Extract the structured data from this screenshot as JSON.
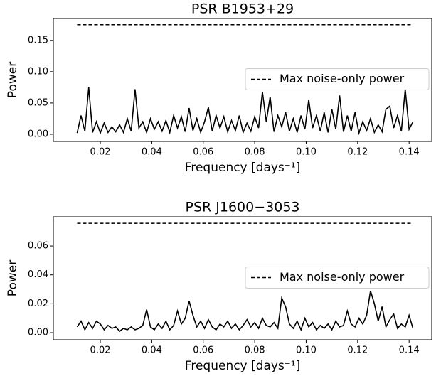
{
  "chart_data": [
    {
      "type": "line",
      "title": "PSR B1953+29",
      "x_label": "Frequency [days⁻¹]",
      "y_label": "Power",
      "x": [
        0.011,
        0.0125,
        0.014,
        0.0155,
        0.017,
        0.0185,
        0.02,
        0.0215,
        0.023,
        0.0245,
        0.026,
        0.0275,
        0.029,
        0.0305,
        0.032,
        0.0335,
        0.035,
        0.0365,
        0.038,
        0.0395,
        0.041,
        0.0425,
        0.044,
        0.0455,
        0.047,
        0.0485,
        0.05,
        0.0515,
        0.053,
        0.0545,
        0.056,
        0.0575,
        0.059,
        0.0605,
        0.062,
        0.0635,
        0.065,
        0.0665,
        0.068,
        0.0695,
        0.071,
        0.0725,
        0.074,
        0.0755,
        0.077,
        0.0785,
        0.08,
        0.0815,
        0.083,
        0.0845,
        0.086,
        0.0875,
        0.089,
        0.0905,
        0.092,
        0.0935,
        0.095,
        0.0965,
        0.098,
        0.0995,
        0.101,
        0.1025,
        0.104,
        0.1055,
        0.107,
        0.1085,
        0.11,
        0.1115,
        0.113,
        0.1145,
        0.116,
        0.1175,
        0.119,
        0.1205,
        0.122,
        0.1235,
        0.125,
        0.1265,
        0.128,
        0.1295,
        0.131,
        0.1325,
        0.134,
        0.1355,
        0.137,
        0.1385,
        0.14,
        0.1415
      ],
      "series": [
        {
          "color": "#000000",
          "values": [
            0.002,
            0.03,
            0.005,
            0.075,
            0.003,
            0.02,
            0.002,
            0.018,
            0.003,
            0.012,
            0.004,
            0.015,
            0.003,
            0.025,
            0.005,
            0.072,
            0.01,
            0.02,
            0.003,
            0.025,
            0.008,
            0.02,
            0.005,
            0.022,
            0.003,
            0.03,
            0.01,
            0.028,
            0.004,
            0.042,
            0.006,
            0.025,
            0.003,
            0.02,
            0.043,
            0.005,
            0.03,
            0.01,
            0.028,
            0.004,
            0.022,
            0.006,
            0.03,
            0.003,
            0.018,
            0.005,
            0.028,
            0.01,
            0.068,
            0.02,
            0.06,
            0.004,
            0.03,
            0.012,
            0.035,
            0.005,
            0.025,
            0.003,
            0.03,
            0.008,
            0.055,
            0.01,
            0.03,
            0.005,
            0.035,
            0.003,
            0.04,
            0.008,
            0.062,
            0.004,
            0.03,
            0.005,
            0.035,
            0.002,
            0.02,
            0.006,
            0.025,
            0.003,
            0.015,
            0.004,
            0.04,
            0.045,
            0.01,
            0.03,
            0.005,
            0.072,
            0.008,
            0.02
          ]
        }
      ],
      "reference_line": {
        "name": "Max noise-only power",
        "value": 0.175,
        "color": "#000000",
        "style": "dashed"
      },
      "legend": "center right",
      "xlim": [
        0.00175,
        0.1488
      ],
      "xticks": [
        0.02,
        0.04,
        0.06,
        0.08,
        {
          "value": 0.1,
          "label": "0.10"
        },
        0.12,
        0.14
      ],
      "ylim": [
        -0.0114,
        0.185
      ],
      "yticks": [
        {
          "value": 0,
          "label": "0.00"
        },
        {
          "value": 0.05,
          "label": "0.05"
        },
        {
          "value": 0.1,
          "label": "0.10"
        },
        {
          "value": 0.15,
          "label": "0.15"
        }
      ]
    },
    {
      "type": "line",
      "title": "PSR J1600−3053",
      "x_label": "Frequency [days⁻¹]",
      "y_label": "Power",
      "x": [
        0.011,
        0.0125,
        0.014,
        0.0155,
        0.017,
        0.0185,
        0.02,
        0.0215,
        0.023,
        0.0245,
        0.026,
        0.0275,
        0.029,
        0.0305,
        0.032,
        0.0335,
        0.035,
        0.0365,
        0.038,
        0.0395,
        0.041,
        0.0425,
        0.044,
        0.0455,
        0.047,
        0.0485,
        0.05,
        0.0515,
        0.053,
        0.0545,
        0.056,
        0.0575,
        0.059,
        0.0605,
        0.062,
        0.0635,
        0.065,
        0.0665,
        0.068,
        0.0695,
        0.071,
        0.0725,
        0.074,
        0.0755,
        0.077,
        0.0785,
        0.08,
        0.0815,
        0.083,
        0.0845,
        0.086,
        0.0875,
        0.089,
        0.0905,
        0.092,
        0.0935,
        0.095,
        0.0965,
        0.098,
        0.0995,
        0.101,
        0.1025,
        0.104,
        0.1055,
        0.107,
        0.1085,
        0.11,
        0.1115,
        0.113,
        0.1145,
        0.116,
        0.1175,
        0.119,
        0.1205,
        0.122,
        0.1235,
        0.125,
        0.1265,
        0.128,
        0.1295,
        0.131,
        0.1325,
        0.134,
        0.1355,
        0.137,
        0.1385,
        0.14,
        0.1415
      ],
      "series": [
        {
          "color": "#000000",
          "values": [
            0.004,
            0.008,
            0.002,
            0.007,
            0.003,
            0.008,
            0.006,
            0.002,
            0.005,
            0.003,
            0.004,
            0.001,
            0.003,
            0.002,
            0.004,
            0.002,
            0.003,
            0.005,
            0.016,
            0.004,
            0.002,
            0.006,
            0.003,
            0.008,
            0.002,
            0.005,
            0.015,
            0.006,
            0.01,
            0.022,
            0.012,
            0.004,
            0.008,
            0.003,
            0.009,
            0.004,
            0.002,
            0.006,
            0.004,
            0.008,
            0.003,
            0.006,
            0.002,
            0.005,
            0.009,
            0.004,
            0.007,
            0.003,
            0.01,
            0.005,
            0.004,
            0.007,
            0.003,
            0.024,
            0.018,
            0.006,
            0.003,
            0.008,
            0.002,
            0.01,
            0.004,
            0.007,
            0.002,
            0.005,
            0.003,
            0.006,
            0.002,
            0.008,
            0.004,
            0.005,
            0.015,
            0.006,
            0.004,
            0.01,
            0.006,
            0.012,
            0.029,
            0.02,
            0.008,
            0.018,
            0.004,
            0.009,
            0.013,
            0.003,
            0.006,
            0.004,
            0.012,
            0.003
          ]
        }
      ],
      "reference_line": {
        "name": "Max noise-only power",
        "value": 0.0757,
        "color": "#000000",
        "style": "dashed"
      },
      "legend": "center right",
      "xlim": [
        0.00175,
        0.1488
      ],
      "xticks": [
        0.02,
        0.04,
        0.06,
        0.08,
        {
          "value": 0.1,
          "label": "0.10"
        },
        0.12,
        0.14
      ],
      "ylim": [
        -0.0049,
        0.0802
      ],
      "yticks": [
        {
          "value": 0,
          "label": "0.00"
        },
        {
          "value": 0.02,
          "label": "0.02"
        },
        {
          "value": 0.04,
          "label": "0.04"
        },
        {
          "value": 0.06,
          "label": "0.06"
        }
      ]
    }
  ]
}
